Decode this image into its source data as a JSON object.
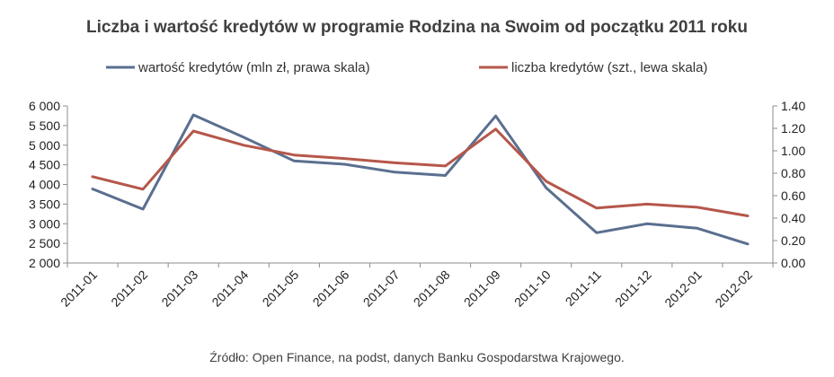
{
  "chart_data": {
    "type": "line",
    "title": "Liczba i wartość kredytów w programie Rodzina na Swoim od początku 2011 roku",
    "categories": [
      "2011-01",
      "2011-02",
      "2011-03",
      "2011-04",
      "2011-05",
      "2011-06",
      "2011-07",
      "2011-08",
      "2011-09",
      "2011-10",
      "2011-11",
      "2011-12",
      "2012-01",
      "2012-02"
    ],
    "series": [
      {
        "name": "wartość kredytów (mln zł, prawa skala)",
        "axis": "right",
        "color": "#5a6f8f",
        "values": [
          0.66,
          0.48,
          1.32,
          1.12,
          0.91,
          0.88,
          0.81,
          0.78,
          1.31,
          0.67,
          0.27,
          0.35,
          0.31,
          0.17
        ]
      },
      {
        "name": "liczba kredytów (szt., lewa skala)",
        "axis": "left",
        "color": "#b5574b",
        "values": [
          4200,
          3880,
          5360,
          5000,
          4750,
          4660,
          4550,
          4470,
          5410,
          4080,
          3400,
          3500,
          3420,
          3200
        ]
      }
    ],
    "y_left": {
      "min": 2000,
      "max": 6000,
      "ticks": [
        "2 000",
        "2 500",
        "3 000",
        "3 500",
        "4 000",
        "4 500",
        "5 000",
        "5 500",
        "6 000"
      ],
      "tick_values": [
        2000,
        2500,
        3000,
        3500,
        4000,
        4500,
        5000,
        5500,
        6000
      ]
    },
    "y_right": {
      "min": 0,
      "max": 1.4,
      "ticks": [
        "0.00",
        "0.20",
        "0.40",
        "0.60",
        "0.80",
        "1.00",
        "1.20",
        "1.40"
      ],
      "tick_values": [
        0,
        0.2,
        0.4,
        0.6,
        0.8,
        1.0,
        1.2,
        1.4
      ]
    },
    "grid": false,
    "legend_position": "top"
  },
  "source": "Źródło: Open Finance, na podst, danych Banku Gospodarstwa Krajowego."
}
